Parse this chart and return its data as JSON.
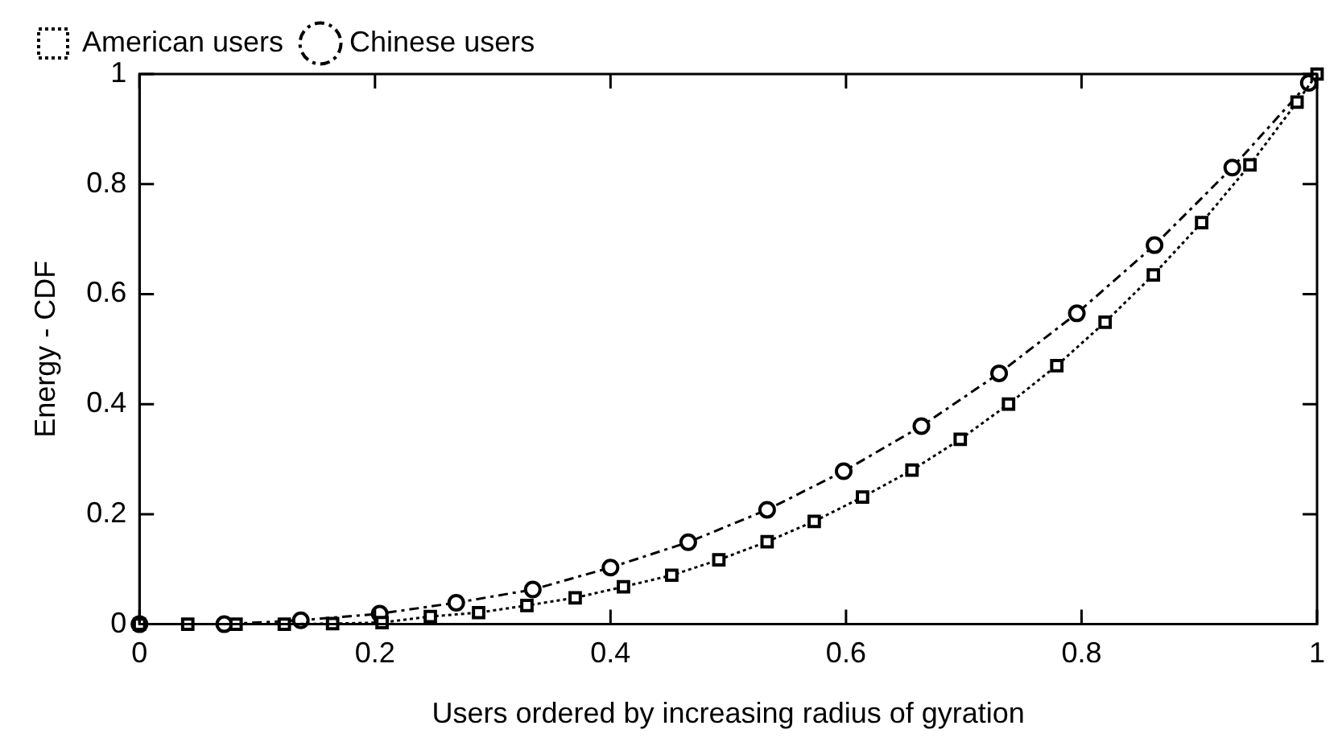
{
  "chart_data": {
    "type": "line",
    "xlabel": "Users ordered by increasing radius of gyration",
    "ylabel": "Energy - CDF",
    "xlim": [
      0,
      1
    ],
    "xticks": [
      0,
      0.2,
      0.4,
      0.6,
      0.8,
      1
    ],
    "ylim": [
      0,
      1
    ],
    "yticks": [
      0,
      0.2,
      0.4,
      0.6,
      0.8,
      1
    ],
    "grid": false,
    "legend": "top left",
    "series": [
      {
        "name": "American users",
        "color": "#000000",
        "marker": "square",
        "line_style": "dotted",
        "x": [
          0,
          0.041,
          0.082,
          0.123,
          0.164,
          0.206,
          0.247,
          0.288,
          0.329,
          0.37,
          0.411,
          0.452,
          0.492,
          0.533,
          0.573,
          0.614,
          0.656,
          0.697,
          0.738,
          0.779,
          0.82,
          0.861,
          0.902,
          0.943,
          0.983,
          1
        ],
        "values": [
          0,
          0,
          0,
          0,
          0.001,
          0.003,
          0.014,
          0.021,
          0.034,
          0.048,
          0.068,
          0.089,
          0.117,
          0.15,
          0.187,
          0.231,
          0.28,
          0.336,
          0.4,
          0.47,
          0.549,
          0.635,
          0.73,
          0.835,
          0.949,
          1
        ]
      },
      {
        "name": "Chinese users",
        "color": "#000000",
        "marker": "circle",
        "line_style": "dashdot",
        "x": [
          0,
          0.072,
          0.137,
          0.204,
          0.269,
          0.334,
          0.4,
          0.466,
          0.533,
          0.598,
          0.664,
          0.73,
          0.796,
          0.862,
          0.928,
          0.993
        ],
        "values": [
          0,
          0,
          0.007,
          0.019,
          0.039,
          0.063,
          0.103,
          0.149,
          0.208,
          0.278,
          0.36,
          0.456,
          0.565,
          0.689,
          0.83,
          0.984
        ]
      }
    ]
  }
}
